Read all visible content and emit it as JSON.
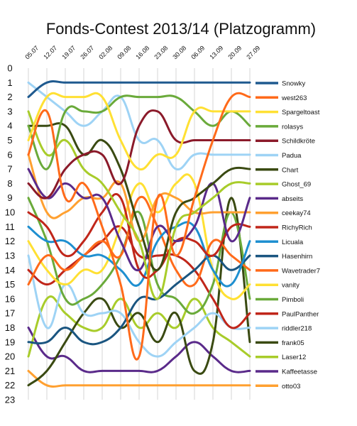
{
  "chart_data": {
    "type": "line",
    "title": "Fonds-Contest 2013/14 (Platzogramm)",
    "xlabel": "",
    "ylabel": "",
    "ylim": [
      0,
      23
    ],
    "y_inverted": true,
    "y_ticks": [
      0,
      1,
      2,
      3,
      4,
      5,
      6,
      7,
      8,
      9,
      10,
      11,
      12,
      13,
      14,
      15,
      16,
      17,
      18,
      19,
      20,
      21,
      22,
      23
    ],
    "categories": [
      "05.07",
      "12.07",
      "19.07",
      "26.07",
      "02.08",
      "09.08",
      "16.08",
      "23.08",
      "30.08",
      "06.09",
      "13.09",
      "20.09",
      "27.09"
    ],
    "legend_position": "right",
    "grid": "vertical",
    "series": [
      {
        "name": "Snowky",
        "color": "#1f5a8f",
        "values": [
          2,
          1,
          1,
          1,
          1,
          1,
          1,
          1,
          1,
          1,
          1,
          1,
          1
        ]
      },
      {
        "name": "west263",
        "color": "#ff6a1a",
        "values": [
          6,
          3,
          9,
          8,
          11,
          15,
          20,
          9,
          13,
          9,
          5,
          2,
          2
        ]
      },
      {
        "name": "Spargeltoast",
        "color": "#ffe033",
        "values": [
          5,
          2,
          2,
          2,
          2,
          5,
          7,
          6,
          6,
          3,
          3,
          3,
          3
        ]
      },
      {
        "name": "rolasys",
        "color": "#6aaa3a",
        "values": [
          4,
          7,
          3,
          3,
          3,
          2,
          2,
          2,
          2,
          3,
          4,
          3,
          4
        ]
      },
      {
        "name": "Schildkröte",
        "color": "#8b1a2a",
        "values": [
          8,
          9,
          7,
          6,
          6,
          8,
          4,
          3,
          5,
          5,
          5,
          5,
          5
        ]
      },
      {
        "name": "Padua",
        "color": "#9ed3f5",
        "values": [
          1,
          2,
          3,
          4,
          3,
          2,
          5,
          5,
          7,
          6,
          6,
          6,
          6
        ]
      },
      {
        "name": "Chart",
        "color": "#3a4a12",
        "values": [
          4,
          4,
          4,
          6,
          5,
          7,
          11,
          14,
          10,
          9,
          8,
          7,
          7
        ]
      },
      {
        "name": "Ghost_69",
        "color": "#a8cc2a",
        "values": [
          3,
          6,
          5,
          7,
          8,
          10,
          12,
          16,
          11,
          10,
          9,
          8,
          8
        ]
      },
      {
        "name": "abseits",
        "color": "#5a2a8a",
        "values": [
          7,
          9,
          8,
          9,
          9,
          12,
          14,
          11,
          12,
          11,
          8,
          12,
          9
        ]
      },
      {
        "name": "ceekay74",
        "color": "#ffa030",
        "values": [
          6,
          10,
          10,
          9,
          9,
          8,
          12,
          9,
          9,
          10,
          10,
          10,
          10
        ]
      },
      {
        "name": "RichyRich",
        "color": "#c0261a",
        "values": [
          10,
          11,
          13,
          12,
          10,
          9,
          14,
          14,
          12,
          12,
          13,
          11,
          11
        ]
      },
      {
        "name": "Licuala",
        "color": "#1e8fd0",
        "values": [
          11,
          12,
          12,
          13,
          13,
          14,
          15,
          12,
          11,
          11,
          14,
          15,
          12
        ]
      },
      {
        "name": "Hasenhirn",
        "color": "#1a5580",
        "values": [
          19,
          19,
          18,
          19,
          19,
          18,
          16,
          16,
          15,
          14,
          13,
          14,
          13
        ]
      },
      {
        "name": "Wavetrader7",
        "color": "#ff6a1a",
        "values": [
          15,
          13,
          14,
          13,
          12,
          13,
          9,
          11,
          14,
          15,
          12,
          13,
          14
        ]
      },
      {
        "name": "vanity",
        "color": "#ffe033",
        "values": [
          12,
          14,
          15,
          14,
          14,
          11,
          8,
          10,
          8,
          8,
          14,
          16,
          15
        ]
      },
      {
        "name": "Pimboli",
        "color": "#6aaa3a",
        "values": [
          9,
          12,
          16,
          16,
          15,
          13,
          10,
          15,
          16,
          17,
          15,
          10,
          16
        ]
      },
      {
        "name": "PaulPanther",
        "color": "#c0261a",
        "values": [
          14,
          15,
          14,
          13,
          12,
          11,
          13,
          13,
          13,
          14,
          16,
          18,
          17
        ]
      },
      {
        "name": "riddler218",
        "color": "#9ed3f5",
        "values": [
          13,
          18,
          15,
          17,
          17,
          17,
          19,
          20,
          19,
          18,
          17,
          18,
          18
        ]
      },
      {
        "name": "frank05",
        "color": "#3a4a12",
        "values": [
          22,
          21,
          19,
          17,
          16,
          18,
          17,
          19,
          17,
          21,
          19,
          9,
          19
        ]
      },
      {
        "name": "Laser12",
        "color": "#a8cc2a",
        "values": [
          20,
          16,
          17,
          18,
          18,
          16,
          18,
          17,
          18,
          16,
          18,
          19,
          20
        ]
      },
      {
        "name": "Kaffeetasse",
        "color": "#5a2a8a",
        "values": [
          18,
          20,
          20,
          21,
          21,
          21,
          21,
          21,
          20,
          19,
          20,
          21,
          21
        ]
      },
      {
        "name": "otto03",
        "color": "#ffa030",
        "values": [
          21,
          22,
          22,
          22,
          22,
          22,
          22,
          22,
          22,
          22,
          22,
          22,
          22
        ]
      }
    ]
  }
}
